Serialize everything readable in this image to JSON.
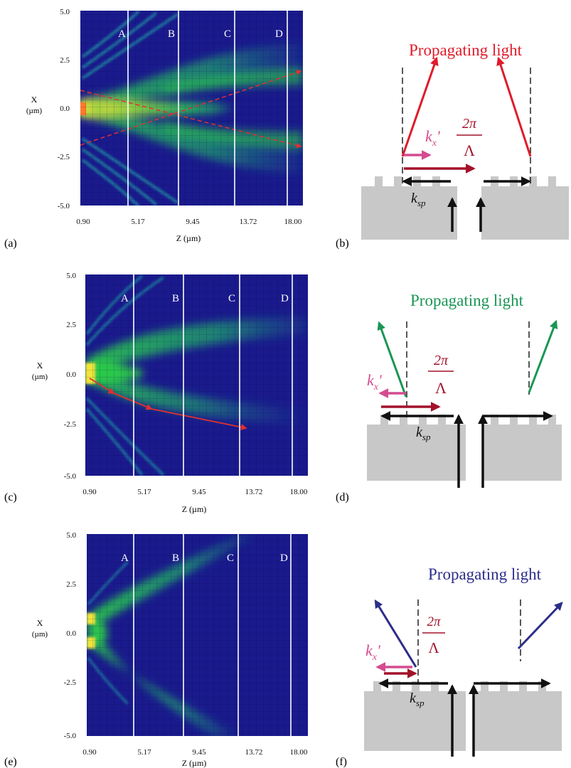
{
  "panels": [
    {
      "id": "a",
      "label": "(a)",
      "y_label_1": "X",
      "y_label_2": "(µm)",
      "y_ticks": [
        "5.0",
        "2.5",
        "0.0",
        "-2.5",
        "-5.0"
      ],
      "x_ticks": [
        "0.90",
        "5.17",
        "9.45",
        "13.72",
        "18.00"
      ],
      "x_label": "Z (µm)",
      "sections": [
        "A",
        "B",
        "C",
        "D"
      ]
    },
    {
      "id": "c",
      "label": "(c)",
      "y_label_1": "X",
      "y_label_2": "(µm)",
      "y_ticks": [
        "5.0",
        "2.5",
        "0.0",
        "-2.5",
        "-5.0"
      ],
      "x_ticks": [
        "0.90",
        "5.17",
        "9.45",
        "13.72",
        "18.00"
      ],
      "x_label": "Z (µm)",
      "sections": [
        "A",
        "B",
        "C",
        "D"
      ]
    },
    {
      "id": "e",
      "label": "(e)",
      "y_label_1": "X",
      "y_label_2": "(µm)",
      "y_ticks": [
        "5.0",
        "2.5",
        "0.0",
        "-2.5",
        "-5.0"
      ],
      "x_ticks": [
        "0.90",
        "5.17",
        "9.45",
        "13.72",
        "18.00"
      ],
      "x_label": "Z (µm)",
      "sections": [
        "A",
        "B",
        "C",
        "D"
      ]
    }
  ],
  "diagrams": [
    {
      "id": "b",
      "label": "(b)",
      "title": "Propagating light",
      "title_color": "#e01b2a",
      "kx": "k",
      "kx_sub": "x",
      "kx_prime": "'",
      "two_pi": "2π",
      "lambda": "Λ",
      "ksp": "k",
      "ksp_sub": "sp"
    },
    {
      "id": "d",
      "label": "(d)",
      "title": "Propagating light",
      "title_color": "#1a9655",
      "kx": "k",
      "kx_sub": "x",
      "kx_prime": "'",
      "two_pi": "2π",
      "lambda": "Λ",
      "ksp": "k",
      "ksp_sub": "sp"
    },
    {
      "id": "f",
      "label": "(f)",
      "title": "Propagating light",
      "title_color": "#2c2e88",
      "kx": "k",
      "kx_sub": "x",
      "kx_prime": "'",
      "two_pi": "2π",
      "lambda": "Λ",
      "ksp": "k",
      "ksp_sub": "sp"
    }
  ],
  "colors": {
    "field_bg": "#1a1a8c",
    "field_mid": "#1fa56c",
    "field_high": "#2bc84a",
    "field_peak": "#f0e53a",
    "path_arrow": "#e03030",
    "substrate": "#c8c8c8",
    "kx_arrow": "#d44c8f",
    "grating_arrow": "#a3122a"
  }
}
